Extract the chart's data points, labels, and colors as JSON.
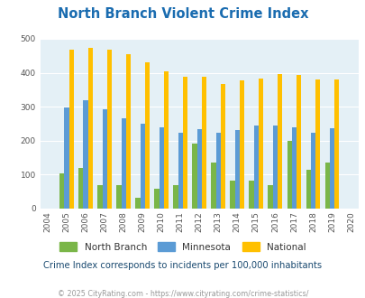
{
  "title": "North Branch Violent Crime Index",
  "years": [
    2004,
    2005,
    2006,
    2007,
    2008,
    2009,
    2010,
    2011,
    2012,
    2013,
    2014,
    2015,
    2016,
    2017,
    2018,
    2019,
    2020
  ],
  "north_branch": [
    null,
    103,
    120,
    68,
    68,
    33,
    58,
    70,
    191,
    135,
    83,
    82,
    70,
    199,
    115,
    135,
    null
  ],
  "minnesota": [
    null,
    298,
    320,
    293,
    265,
    249,
    238,
    224,
    234,
    224,
    232,
    245,
    245,
    240,
    224,
    237,
    null
  ],
  "national": [
    null,
    469,
    474,
    467,
    455,
    431,
    405,
    387,
    387,
    368,
    377,
    383,
    397,
    394,
    380,
    379,
    null
  ],
  "north_branch_color": "#7ab648",
  "minnesota_color": "#5b9bd5",
  "national_color": "#ffc000",
  "plot_bg_color": "#e4f0f6",
  "ylim": [
    0,
    500
  ],
  "yticks": [
    0,
    100,
    200,
    300,
    400,
    500
  ],
  "bar_width": 0.25,
  "subtitle": "Crime Index corresponds to incidents per 100,000 inhabitants",
  "footer": "© 2025 CityRating.com - https://www.cityrating.com/crime-statistics/",
  "title_color": "#1a6cb0",
  "subtitle_color": "#1a4a70",
  "footer_color": "#999999"
}
